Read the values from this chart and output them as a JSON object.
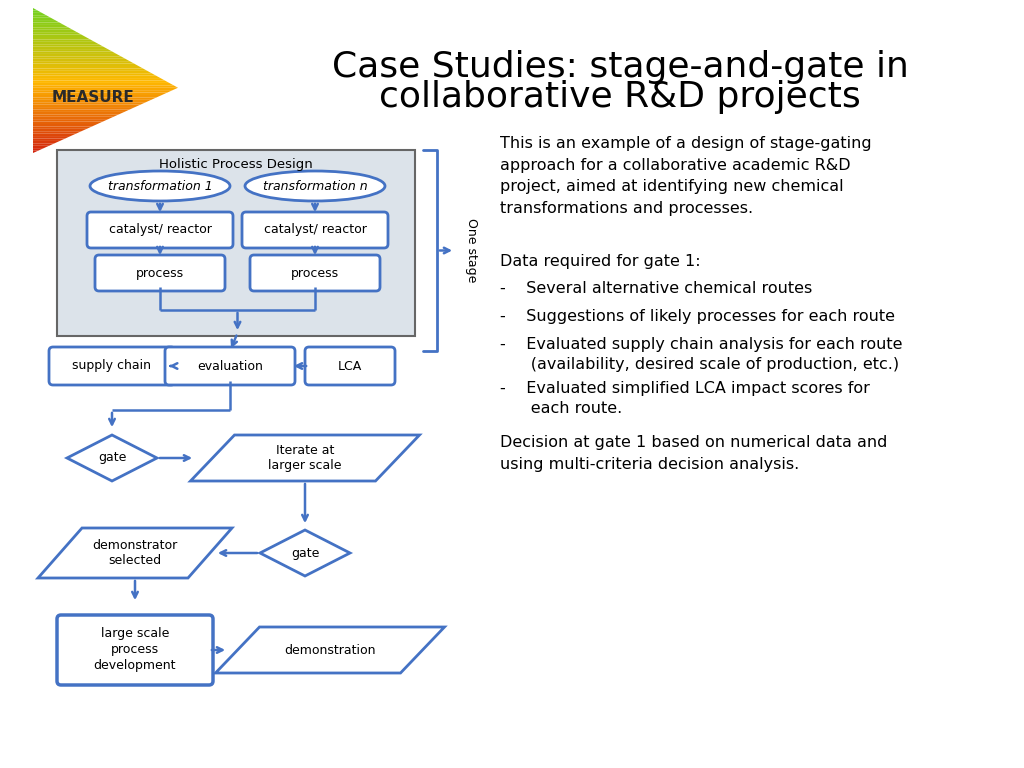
{
  "title_line1": "Case Studies: stage-and-gate in",
  "title_line2": "collaborative R&D projects",
  "title_fontsize": 26,
  "background_color": "#ffffff",
  "shape_fill": "#ffffff",
  "shape_edge": "#4472c4",
  "shape_linewidth": 2.0,
  "arrow_color": "#4472c4",
  "text_color": "#000000",
  "hpd_fill": "#dce3ea",
  "hpd_edge": "#666666",
  "one_stage_label": "One stage",
  "right_text_intro": "This is an example of a design of stage-gating\napproach for a collaborative academic R&D\nproject, aimed at identifying new chemical\ntransformations and processes.",
  "right_text_gate_header": "Data required for gate 1:",
  "right_text_decision": "Decision at gate 1 based on numerical data and\nusing multi-criteria decision analysis.",
  "bullet1": "-    Several alternative chemical routes",
  "bullet2": "-    Suggestions of likely processes for each route",
  "bullet3": "-    Evaluated supply chain analysis for each route\n      (availability, desired scale of production, etc.)",
  "bullet4": "-    Evaluated simplified LCA impact scores for\n      each route.",
  "logo_text": "MEASURE",
  "logo_text_color": "#2a2a2a",
  "logo_text_fontsize": 11
}
